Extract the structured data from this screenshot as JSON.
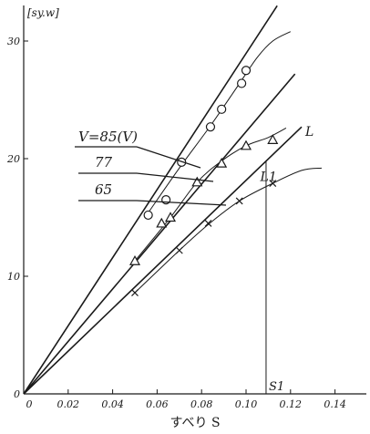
{
  "chart_data": {
    "type": "line",
    "ylabel": "[sy.w]",
    "xlabel": "すべり S",
    "xlim": [
      0,
      0.14
    ],
    "ylim": [
      0,
      33
    ],
    "x_ticks": [
      "0",
      "0.02",
      "0.04",
      "0.06",
      "0.08",
      "0.10",
      "0.12",
      "0.14"
    ],
    "x_tick_values": [
      0,
      0.02,
      0.04,
      0.06,
      0.08,
      0.1,
      0.12,
      0.14
    ],
    "y_ticks": [
      "0",
      "10",
      "20",
      "30"
    ],
    "y_tick_values": [
      0,
      10,
      20,
      30
    ],
    "series": [
      {
        "name": "V=85(V)",
        "marker": "circle",
        "points": [
          [
            0.056,
            15.2
          ],
          [
            0.064,
            16.5
          ],
          [
            0.071,
            19.7
          ],
          [
            0.084,
            22.7
          ],
          [
            0.089,
            24.2
          ],
          [
            0.098,
            26.4
          ],
          [
            0.1,
            27.5
          ]
        ],
        "line": [
          [
            0,
            0
          ],
          [
            0.114,
            33
          ]
        ],
        "curve": [
          [
            0.056,
            15.4
          ],
          [
            0.07,
            19.2
          ],
          [
            0.084,
            22.8
          ],
          [
            0.096,
            26.1
          ],
          [
            0.105,
            28.6
          ],
          [
            0.112,
            30.0
          ],
          [
            0.12,
            30.8
          ]
        ]
      },
      {
        "name": "77",
        "marker": "triangle",
        "points": [
          [
            0.05,
            11.3
          ],
          [
            0.062,
            14.5
          ],
          [
            0.066,
            15.0
          ],
          [
            0.078,
            18.0
          ],
          [
            0.089,
            19.6
          ],
          [
            0.1,
            21.1
          ],
          [
            0.112,
            21.6
          ]
        ],
        "line": [
          [
            0,
            0
          ],
          [
            0.122,
            27.2
          ]
        ],
        "curve": [
          [
            0.05,
            11.3
          ],
          [
            0.066,
            15.0
          ],
          [
            0.078,
            18.0
          ],
          [
            0.089,
            19.8
          ],
          [
            0.1,
            21.1
          ],
          [
            0.11,
            21.8
          ],
          [
            0.118,
            22.6
          ]
        ]
      },
      {
        "name": "65",
        "marker": "cross",
        "points": [
          [
            0.05,
            8.6
          ],
          [
            0.07,
            12.2
          ],
          [
            0.083,
            14.5
          ],
          [
            0.097,
            16.4
          ],
          [
            0.112,
            17.9
          ]
        ],
        "line": [
          [
            0,
            0
          ],
          [
            0.125,
            22.7
          ]
        ],
        "curve": [
          [
            0.05,
            8.6
          ],
          [
            0.07,
            12.2
          ],
          [
            0.083,
            14.4
          ],
          [
            0.097,
            16.4
          ],
          [
            0.112,
            17.9
          ],
          [
            0.125,
            19.0
          ],
          [
            0.134,
            19.2
          ]
        ]
      }
    ],
    "annotations": {
      "L_label": "L",
      "L1_label": "L1",
      "S1_label": "S1",
      "S1_x": 0.109,
      "L1_y": 19.2
    }
  }
}
